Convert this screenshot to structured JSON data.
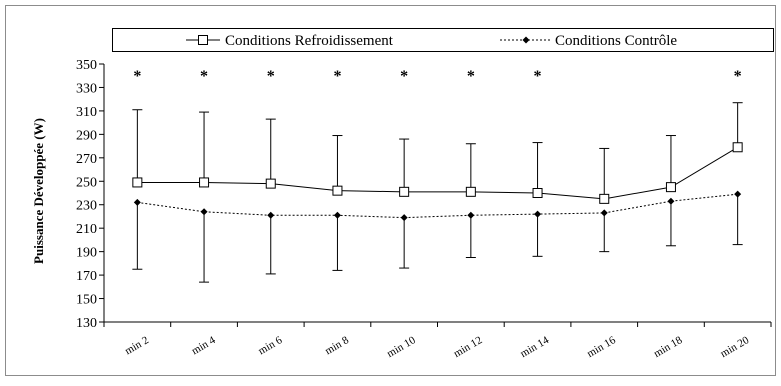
{
  "chart_data": {
    "type": "line",
    "title": "",
    "xlabel": "",
    "ylabel": "Puissance Développée (W)",
    "categories": [
      "min 2",
      "min 4",
      "min 6",
      "min 8",
      "min 10",
      "min 12",
      "min 14",
      "min 16",
      "min 18",
      "min 20"
    ],
    "ylim": [
      130,
      350
    ],
    "yticks": [
      130,
      150,
      170,
      190,
      210,
      230,
      250,
      270,
      290,
      310,
      330,
      350
    ],
    "grid": false,
    "legend_position": "top",
    "significance_marker": "*",
    "significant": [
      true,
      true,
      true,
      true,
      true,
      true,
      true,
      false,
      false,
      true
    ],
    "series": [
      {
        "name": "Conditions Refroidissement",
        "marker": "open-square",
        "line_style": "solid",
        "values": [
          249,
          249,
          248,
          242,
          241,
          241,
          240,
          235,
          245,
          279
        ],
        "error_upper": [
          311,
          309,
          303,
          289,
          286,
          282,
          283,
          278,
          289,
          317
        ]
      },
      {
        "name": "Conditions Contrôle",
        "marker": "filled-diamond",
        "line_style": "dotted",
        "values": [
          232,
          224,
          221,
          221,
          219,
          221,
          222,
          223,
          233,
          239
        ],
        "error_lower": [
          175,
          164,
          171,
          174,
          176,
          185,
          186,
          190,
          195,
          196
        ]
      }
    ]
  }
}
